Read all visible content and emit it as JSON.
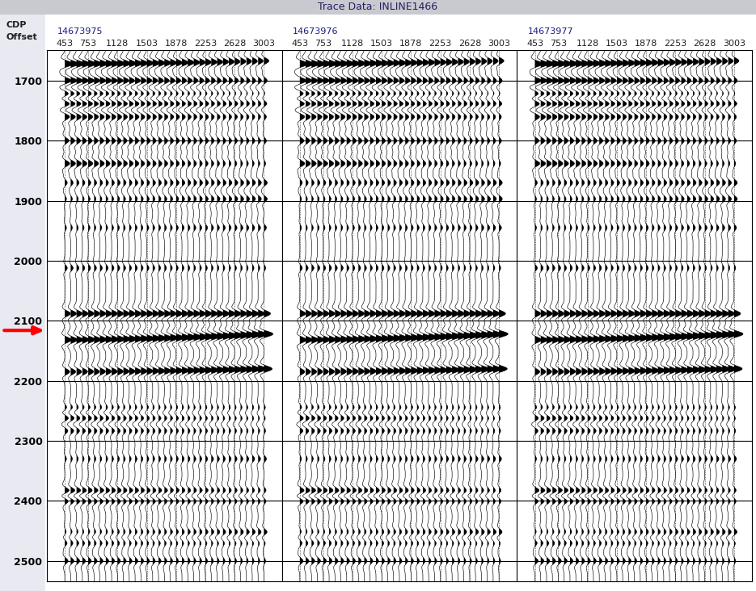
{
  "chart_data": {
    "type": "wiggle",
    "title": "Trace Data: INLINE1466",
    "header_labels": [
      "CDP",
      "Offset"
    ],
    "gathers": [
      14673975,
      14673976,
      14673977
    ],
    "trace_offsets": [
      453,
      528,
      603,
      678,
      753,
      828,
      903,
      978,
      1053,
      1128,
      1203,
      1278,
      1353,
      1428,
      1503,
      1578,
      1653,
      1728,
      1803,
      1878,
      1953,
      2028,
      2103,
      2178,
      2253,
      2328,
      2403,
      2478,
      2553,
      2628,
      2703,
      2778,
      2853,
      2928,
      3003
    ],
    "xticks": [
      453,
      753,
      1128,
      1503,
      1878,
      2253,
      2628,
      3003
    ],
    "ylim": [
      2534,
      1649
    ],
    "yticks": [
      1700,
      1800,
      1900,
      2000,
      2100,
      2200,
      2300,
      2400,
      2500
    ],
    "grid": true,
    "events": [
      {
        "time": 1672,
        "far_time_shift": -5,
        "amp_near": 1.0,
        "amp_far": 0.6
      },
      {
        "time": 1700,
        "far_time_shift": 0,
        "amp_near": 0.8,
        "amp_far": 0.4
      },
      {
        "time": 1722,
        "far_time_shift": 0,
        "amp_near": 0.6,
        "amp_far": 0.2
      },
      {
        "time": 1738,
        "far_time_shift": 0,
        "amp_near": 0.7,
        "amp_far": 0.4
      },
      {
        "time": 1760,
        "far_time_shift": 0,
        "amp_near": 0.6,
        "amp_far": 0.3
      },
      {
        "time": 1800,
        "far_time_shift": 0,
        "amp_near": 0.5,
        "amp_far": 0.3
      },
      {
        "time": 1838,
        "far_time_shift": 0,
        "amp_near": 0.6,
        "amp_far": 0.2
      },
      {
        "time": 1870,
        "far_time_shift": 0,
        "amp_near": 0.3,
        "amp_far": 0.4
      },
      {
        "time": 1897,
        "far_time_shift": 0,
        "amp_near": 0.2,
        "amp_far": 0.4
      },
      {
        "time": 1945,
        "far_time_shift": 0,
        "amp_near": 0.2,
        "amp_far": 0.3
      },
      {
        "time": 2012,
        "far_time_shift": 0,
        "amp_near": 0.3,
        "amp_far": 0.2
      },
      {
        "time": 2088,
        "far_time_shift": 0,
        "amp_near": 0.7,
        "amp_far": 0.8
      },
      {
        "time": 2132,
        "far_time_shift": -10,
        "amp_near": 0.8,
        "amp_far": 1.1
      },
      {
        "time": 2185,
        "far_time_shift": -5,
        "amp_near": 0.6,
        "amp_far": 1.0
      },
      {
        "time": 2245,
        "far_time_shift": 0,
        "amp_near": 0.3,
        "amp_far": 0.2
      },
      {
        "time": 2262,
        "far_time_shift": 0,
        "amp_near": 0.5,
        "amp_far": 0.2
      },
      {
        "time": 2283,
        "far_time_shift": 0,
        "amp_near": 0.4,
        "amp_far": 0.2
      },
      {
        "time": 2330,
        "far_time_shift": 0,
        "amp_near": 0.2,
        "amp_far": 0.3
      },
      {
        "time": 2383,
        "far_time_shift": 0,
        "amp_near": 0.6,
        "amp_far": 0.3
      },
      {
        "time": 2400,
        "far_time_shift": 0,
        "amp_near": 0.5,
        "amp_far": 0.3
      },
      {
        "time": 2452,
        "far_time_shift": 0,
        "amp_near": 0.2,
        "amp_far": 0.4
      },
      {
        "time": 2470,
        "far_time_shift": 0,
        "amp_near": 0.3,
        "amp_far": 0.2
      },
      {
        "time": 2500,
        "far_time_shift": 0,
        "amp_near": 0.4,
        "amp_far": 0.2
      }
    ],
    "annotations": [
      {
        "time": 2116,
        "color": "red"
      }
    ]
  }
}
